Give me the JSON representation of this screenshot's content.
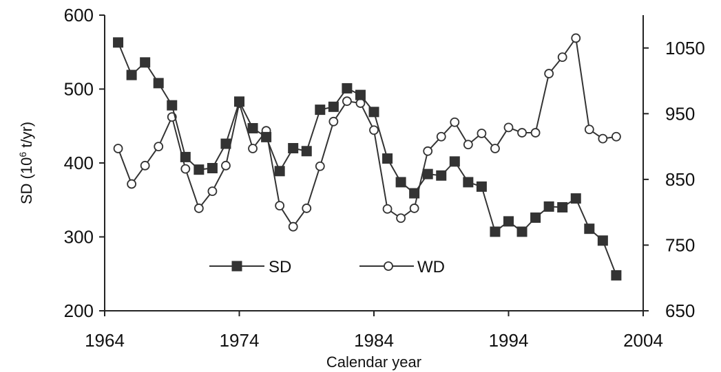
{
  "chart_data": {
    "type": "line",
    "xlabel": "Calendar year",
    "ylabel_left": "SD (10⁶ t/yr)",
    "ylabel_left_parts": {
      "pre": "SD (10",
      "sup": "6",
      "post": " t/yr)"
    },
    "ylabel_right": "",
    "xlim": [
      1964,
      2004
    ],
    "ylim_left": [
      200,
      600
    ],
    "ylim_right": [
      650,
      1100
    ],
    "x_ticks": [
      1964,
      1974,
      1984,
      1994,
      2004
    ],
    "y_left_ticks": [
      200,
      300,
      400,
      500,
      600
    ],
    "y_right_ticks": [
      650,
      750,
      850,
      950,
      1050
    ],
    "legend_position": "bottom-center",
    "series": [
      {
        "name": "SD",
        "axis": "left",
        "marker": "filled-square",
        "x": [
          1965,
          1966,
          1967,
          1968,
          1969,
          1970,
          1971,
          1972,
          1973,
          1974,
          1975,
          1976,
          1977,
          1978,
          1979,
          1980,
          1981,
          1982,
          1983,
          1984,
          1985,
          1986,
          1987,
          1988,
          1989,
          1990,
          1991,
          1992,
          1993,
          1994,
          1995,
          1996,
          1997,
          1998,
          1999,
          2000,
          2001,
          2002
        ],
        "values": [
          563,
          519,
          536,
          508,
          478,
          408,
          391,
          393,
          426,
          483,
          447,
          435,
          389,
          420,
          416,
          472,
          476,
          501,
          492,
          469,
          406,
          374,
          359,
          385,
          383,
          402,
          374,
          368,
          307,
          321,
          307,
          326,
          341,
          340,
          352,
          311,
          295,
          248
        ]
      },
      {
        "name": "WD",
        "axis": "right",
        "marker": "open-circle",
        "x": [
          1965,
          1966,
          1967,
          1968,
          1969,
          1970,
          1971,
          1972,
          1973,
          1974,
          1975,
          1976,
          1977,
          1978,
          1979,
          1980,
          1981,
          1982,
          1983,
          1984,
          1985,
          1986,
          1987,
          1988,
          1989,
          1990,
          1991,
          1992,
          1993,
          1994,
          1995,
          1996,
          1997,
          1998,
          1999,
          2000,
          2001,
          2002
        ],
        "values": [
          897,
          843,
          871,
          900,
          945,
          866,
          806,
          832,
          871,
          966,
          897,
          924,
          810,
          778,
          806,
          870,
          938,
          969,
          966,
          925,
          805,
          791,
          806,
          893,
          915,
          937,
          903,
          920,
          897,
          929,
          921,
          921,
          1011,
          1036,
          1065,
          926,
          912,
          915
        ]
      }
    ]
  }
}
